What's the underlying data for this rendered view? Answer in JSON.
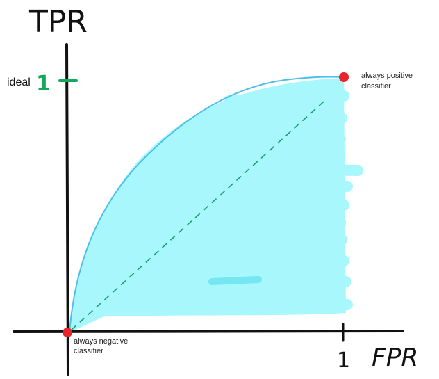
{
  "axes": {
    "y_title": "TPR",
    "x_title": "FPR",
    "y_tick_label": "1",
    "x_tick_label": "1",
    "y_tick_prefix": "ideal"
  },
  "annotations": {
    "always_positive_line1": "always positive",
    "always_positive_line2": "classifier",
    "always_negative_line1": "always negative",
    "always_negative_line2": "classifier"
  },
  "colors": {
    "axis": "#111111",
    "curve": "#4cbfea",
    "fill": "#a7f7fc",
    "diagonal": "#159e6e",
    "ideal_marker": "#16a85a",
    "point": "#e8242c"
  }
}
